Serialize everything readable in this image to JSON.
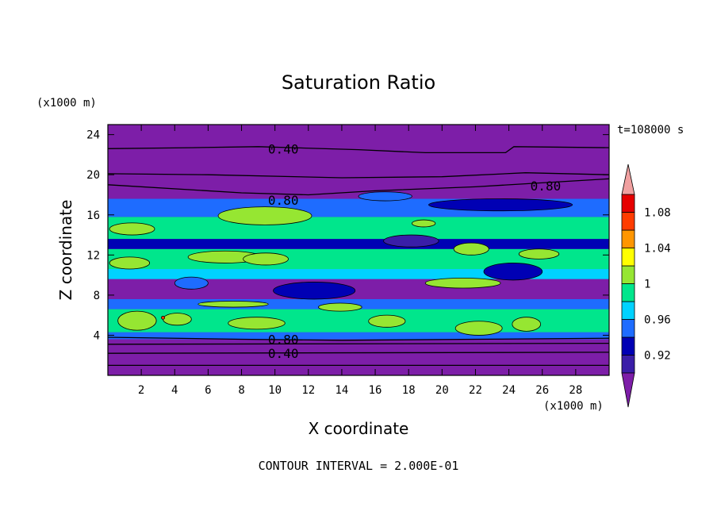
{
  "chart_data": {
    "type": "heatmap",
    "title": "Saturation Ratio",
    "xlabel": "X coordinate",
    "ylabel": "Z coordinate",
    "x_unit": "(x1000 m)",
    "y_unit": "(x1000 m)",
    "xlim": [
      0,
      30
    ],
    "ylim": [
      0,
      25
    ],
    "x_ticks": [
      2,
      4,
      6,
      8,
      10,
      12,
      14,
      16,
      18,
      20,
      22,
      24,
      26,
      28
    ],
    "y_ticks": [
      4,
      8,
      12,
      16,
      20,
      24
    ],
    "time_label": "t=108000 s",
    "footer": "CONTOUR INTERVAL = 2.000E-01",
    "contour_labels": [
      {
        "text": "0.40",
        "x": 10.5,
        "z": 22.6
      },
      {
        "text": "0.80",
        "x": 26.2,
        "z": 18.9
      },
      {
        "text": "0.80",
        "x": 10.5,
        "z": 17.5
      },
      {
        "text": "0.80",
        "x": 10.5,
        "z": 3.6
      },
      {
        "text": "0.40",
        "x": 10.5,
        "z": 2.2
      }
    ],
    "colorbar": {
      "tick_labels": [
        "0.92",
        "0.96",
        "1",
        "1.04",
        "1.08"
      ],
      "levels": [
        0.9,
        0.92,
        0.94,
        0.96,
        0.98,
        1.0,
        1.02,
        1.04,
        1.06,
        1.08,
        1.1
      ],
      "colors": [
        "#3a1ea8",
        "#0000b4",
        "#1e6cff",
        "#00d2ff",
        "#00e68c",
        "#96e632",
        "#ffff00",
        "#ff9600",
        "#ff3c00",
        "#e60000"
      ],
      "under_color": "#7d1ea8",
      "over_color": "#f0a0a0"
    },
    "bands": [
      {
        "z0": 0.0,
        "z1": 3.6,
        "level": "under"
      },
      {
        "z0": 3.6,
        "z1": 4.3,
        "level": 2
      },
      {
        "z0": 4.3,
        "z1": 6.6,
        "level": 4
      },
      {
        "z0": 6.6,
        "z1": 7.6,
        "level": 2
      },
      {
        "z0": 7.6,
        "z1": 9.6,
        "level": "under"
      },
      {
        "z0": 9.6,
        "z1": 10.6,
        "level": 3
      },
      {
        "z0": 10.6,
        "z1": 12.6,
        "level": 4
      },
      {
        "z0": 12.6,
        "z1": 13.6,
        "level": 1
      },
      {
        "z0": 13.6,
        "z1": 15.8,
        "level": 4
      },
      {
        "z0": 15.8,
        "z1": 17.6,
        "level": 2
      },
      {
        "z0": 17.6,
        "z1": 25.0,
        "level": "under"
      }
    ],
    "patches": [
      {
        "x0": 0.6,
        "x1": 2.9,
        "z0": 4.5,
        "z1": 6.4,
        "level": 5
      },
      {
        "x0": 3.3,
        "x1": 5.0,
        "z0": 5.0,
        "z1": 6.2,
        "level": 5
      },
      {
        "x0": 7.2,
        "x1": 10.6,
        "z0": 4.6,
        "z1": 5.8,
        "level": 5
      },
      {
        "x0": 15.6,
        "x1": 17.8,
        "z0": 4.8,
        "z1": 6.0,
        "level": 5
      },
      {
        "x0": 20.8,
        "x1": 23.6,
        "z0": 4.0,
        "z1": 5.4,
        "level": 5
      },
      {
        "x0": 24.2,
        "x1": 25.9,
        "z0": 4.4,
        "z1": 5.8,
        "level": 5
      },
      {
        "x0": 5.4,
        "x1": 9.6,
        "z0": 6.8,
        "z1": 7.4,
        "level": 5
      },
      {
        "x0": 12.6,
        "x1": 15.2,
        "z0": 6.4,
        "z1": 7.2,
        "level": 5
      },
      {
        "x0": 0.1,
        "x1": 2.5,
        "z0": 10.6,
        "z1": 11.8,
        "level": 5
      },
      {
        "x0": 4.8,
        "x1": 9.2,
        "z0": 11.2,
        "z1": 12.4,
        "level": 5
      },
      {
        "x0": 8.1,
        "x1": 10.8,
        "z0": 11.0,
        "z1": 12.2,
        "level": 5
      },
      {
        "x0": 20.7,
        "x1": 22.8,
        "z0": 12.0,
        "z1": 13.2,
        "level": 5
      },
      {
        "x0": 24.6,
        "x1": 27.0,
        "z0": 11.6,
        "z1": 12.6,
        "level": 5
      },
      {
        "x0": 0.1,
        "x1": 2.8,
        "z0": 14.0,
        "z1": 15.2,
        "level": 5
      },
      {
        "x0": 6.6,
        "x1": 12.2,
        "z0": 15.0,
        "z1": 16.8,
        "level": 5
      },
      {
        "x0": 18.2,
        "x1": 19.6,
        "z0": 14.8,
        "z1": 15.5,
        "level": 5
      },
      {
        "x0": 19.0,
        "x1": 23.5,
        "z0": 8.7,
        "z1": 9.7,
        "level": 5
      },
      {
        "x0": 9.9,
        "x1": 14.8,
        "z0": 7.6,
        "z1": 9.3,
        "level": 1
      },
      {
        "x0": 16.5,
        "x1": 19.8,
        "z0": 12.8,
        "z1": 14.0,
        "level": 0
      },
      {
        "x0": 22.5,
        "x1": 26.0,
        "z0": 9.5,
        "z1": 11.2,
        "level": 1
      },
      {
        "x0": 19.2,
        "x1": 27.8,
        "z0": 16.4,
        "z1": 17.6,
        "level": 1
      },
      {
        "x0": 15.0,
        "x1": 18.2,
        "z0": 17.4,
        "z1": 18.3,
        "level": 2
      },
      {
        "x0": 4.0,
        "x1": 6.0,
        "z0": 8.6,
        "z1": 9.8,
        "level": 2
      },
      {
        "x0": 3.2,
        "x1": 3.4,
        "z0": 5.6,
        "z1": 5.9,
        "level": 8
      }
    ],
    "contours": [
      {
        "level": 0.4,
        "points": [
          [
            0,
            22.6
          ],
          [
            5,
            22.7
          ],
          [
            9,
            22.8
          ],
          [
            15,
            22.5
          ],
          [
            19,
            22.2
          ],
          [
            23.8,
            22.2
          ],
          [
            24.3,
            22.8
          ],
          [
            30,
            22.7
          ]
        ]
      },
      {
        "level": 0.8,
        "points": [
          [
            0,
            19.0
          ],
          [
            8,
            18.2
          ],
          [
            12,
            18.0
          ],
          [
            16,
            18.4
          ],
          [
            22,
            18.8
          ],
          [
            30,
            19.6
          ]
        ]
      },
      {
        "level": 0.6,
        "points": [
          [
            0,
            20.1
          ],
          [
            6,
            20.0
          ],
          [
            14,
            19.7
          ],
          [
            20,
            19.8
          ],
          [
            25,
            20.2
          ],
          [
            30,
            20.0
          ]
        ]
      },
      {
        "level": 0.8,
        "points": [
          [
            0,
            3.8
          ],
          [
            8,
            3.6
          ],
          [
            14,
            3.5
          ],
          [
            22,
            3.6
          ],
          [
            30,
            3.7
          ]
        ]
      },
      {
        "level": 0.6,
        "points": [
          [
            0,
            3.1
          ],
          [
            30,
            3.2
          ]
        ]
      },
      {
        "level": 0.4,
        "points": [
          [
            0,
            2.2
          ],
          [
            30,
            2.3
          ]
        ]
      },
      {
        "level": 0.2,
        "points": [
          [
            0,
            1.0
          ],
          [
            30,
            1.0
          ]
        ]
      }
    ]
  }
}
